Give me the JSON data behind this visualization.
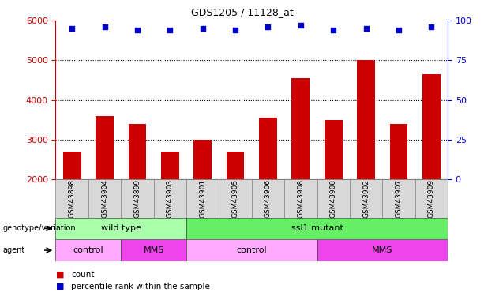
{
  "title": "GDS1205 / 11128_at",
  "samples": [
    "GSM43898",
    "GSM43904",
    "GSM43899",
    "GSM43903",
    "GSM43901",
    "GSM43905",
    "GSM43906",
    "GSM43908",
    "GSM43900",
    "GSM43902",
    "GSM43907",
    "GSM43909"
  ],
  "counts": [
    2700,
    3600,
    3400,
    2700,
    3000,
    2700,
    3550,
    4550,
    3500,
    5000,
    3400,
    4650
  ],
  "percentile_ranks": [
    95,
    96,
    94,
    94,
    95,
    94,
    96,
    97,
    94,
    95,
    94,
    96
  ],
  "ylim_left": [
    2000,
    6000
  ],
  "ylim_right": [
    0,
    100
  ],
  "yticks_left": [
    2000,
    3000,
    4000,
    5000,
    6000
  ],
  "yticks_right": [
    0,
    25,
    50,
    75,
    100
  ],
  "bar_color": "#cc0000",
  "dot_color": "#0000cc",
  "background_color": "#ffffff",
  "genotype_groups": [
    {
      "label": "wild type",
      "start": 0,
      "end": 4,
      "color": "#aaffaa"
    },
    {
      "label": "ssl1 mutant",
      "start": 4,
      "end": 12,
      "color": "#66ee66"
    }
  ],
  "agent_groups": [
    {
      "label": "control",
      "start": 0,
      "end": 2,
      "color": "#ffaaff"
    },
    {
      "label": "MMS",
      "start": 2,
      "end": 4,
      "color": "#ee44ee"
    },
    {
      "label": "control",
      "start": 4,
      "end": 8,
      "color": "#ffaaff"
    },
    {
      "label": "MMS",
      "start": 8,
      "end": 12,
      "color": "#ee44ee"
    }
  ],
  "tick_label_color_left": "#cc0000",
  "tick_label_color_right": "#0000cc",
  "xaxis_bg": "#d8d8d8"
}
